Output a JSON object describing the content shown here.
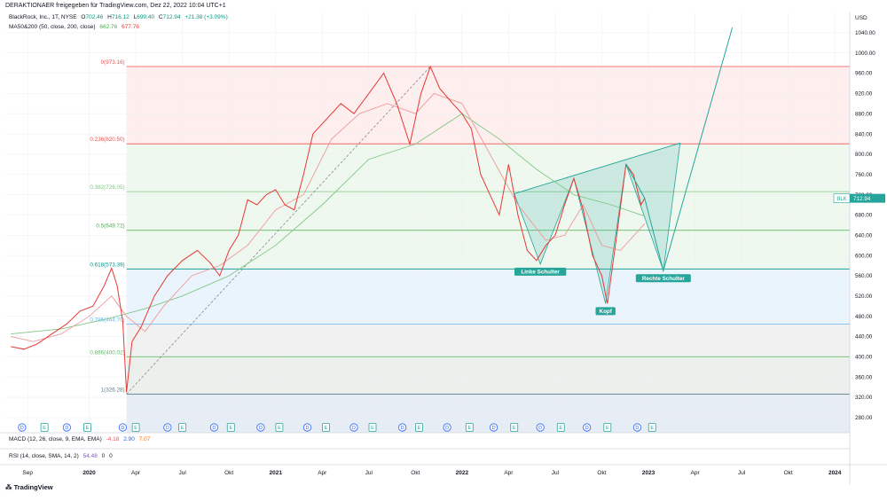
{
  "header": {
    "attribution": "DERAKTIONAER freigegeben für TradingView.com, Dez 22, 2022 10:04 UTC+1"
  },
  "legend": {
    "symbol": "BlackRock, Inc., 1T, NYSE",
    "ohlc": [
      {
        "key": "O",
        "value": "702.46"
      },
      {
        "key": "H",
        "value": "716.12"
      },
      {
        "key": "L",
        "value": "699.40"
      },
      {
        "key": "C",
        "value": "712.94"
      }
    ],
    "change": "+21.38 (+3.09%)",
    "ma_label": "MA50&200 (50, close, 200, close)",
    "ma_values": [
      "662.76",
      "677.76"
    ],
    "macd_label": "MACD (12, 26, close, 9, EMA, EMA)",
    "macd_values": [
      "-4.18",
      "2.90",
      "7.07"
    ],
    "rsi_label": "RSI (14, close, SMA, 14, 2)",
    "rsi_values": [
      "54.48",
      "0",
      "0"
    ]
  },
  "price_tag": {
    "symbol": "BLK",
    "value": "712.94"
  },
  "brand": "TradingView",
  "colors": {
    "price_line": "#e53935",
    "ma50": "#ef9a9a",
    "ma200": "#81c784",
    "projection": "#26a69a",
    "pattern_fill": "#26a69a",
    "label_bg": "#26a69a"
  },
  "chart_data": {
    "type": "line",
    "title": "BlackRock, Inc., 1T, NYSE",
    "currency": "USD",
    "y_ticks": [
      280,
      320,
      360,
      400,
      440,
      480,
      520,
      560,
      600,
      640,
      680,
      720,
      760,
      800,
      840,
      880,
      920,
      960,
      1000,
      1040
    ],
    "y_tick_labels": [
      "280.00",
      "320.00",
      "360.00",
      "400.00",
      "440.00",
      "480.00",
      "520.00",
      "560.00",
      "600.00",
      "640.00",
      "680.00",
      "720.00",
      "760.00",
      "800.00",
      "840.00",
      "880.00",
      "920.00",
      "960.00",
      "1000.00",
      "1040.00"
    ],
    "ylim": [
      250,
      1080
    ],
    "x_ticks": [
      {
        "label": "Sep",
        "t": 2019.67
      },
      {
        "label": "2020",
        "t": 2020.0
      },
      {
        "label": "Apr",
        "t": 2020.25
      },
      {
        "label": "Jul",
        "t": 2020.5
      },
      {
        "label": "Okt",
        "t": 2020.75
      },
      {
        "label": "2021",
        "t": 2021.0
      },
      {
        "label": "Apr",
        "t": 2021.25
      },
      {
        "label": "Jul",
        "t": 2021.5
      },
      {
        "label": "Okt",
        "t": 2021.75
      },
      {
        "label": "2022",
        "t": 2022.0
      },
      {
        "label": "Apr",
        "t": 2022.25
      },
      {
        "label": "Jul",
        "t": 2022.5
      },
      {
        "label": "Okt",
        "t": 2022.75
      },
      {
        "label": "2023",
        "t": 2023.0
      },
      {
        "label": "Apr",
        "t": 2023.25
      },
      {
        "label": "Jul",
        "t": 2023.5
      },
      {
        "label": "Okt",
        "t": 2023.75
      },
      {
        "label": "2024",
        "t": 2024.0
      }
    ],
    "fib_levels": [
      {
        "label": "0(973.16)",
        "value": 973.16,
        "color": "#ef5350"
      },
      {
        "label": "0.236(820.50)",
        "value": 820.5,
        "color": "#ef5350"
      },
      {
        "label": "0.382(726.05)",
        "value": 726.05,
        "color": "#81c784"
      },
      {
        "label": "0.5(649.72)",
        "value": 649.72,
        "color": "#4caf50"
      },
      {
        "label": "0.618(573.39)",
        "value": 573.39,
        "color": "#009688"
      },
      {
        "label": "0.786(464.70)",
        "value": 464.7,
        "color": "#64b5f6"
      },
      {
        "label": "0.886(400.02)",
        "value": 400.02,
        "color": "#66bb6a"
      },
      {
        "label": "1(326.28)",
        "value": 326.28,
        "color": "#607d8b"
      }
    ],
    "series": [
      {
        "name": "BLK",
        "points": [
          [
            2019.58,
            420
          ],
          [
            2019.65,
            415
          ],
          [
            2019.72,
            425
          ],
          [
            2019.8,
            445
          ],
          [
            2019.88,
            465
          ],
          [
            2019.95,
            490
          ],
          [
            2020.02,
            500
          ],
          [
            2020.08,
            540
          ],
          [
            2020.12,
            575
          ],
          [
            2020.15,
            540
          ],
          [
            2020.18,
            470
          ],
          [
            2020.2,
            330
          ],
          [
            2020.23,
            430
          ],
          [
            2020.28,
            460
          ],
          [
            2020.35,
            520
          ],
          [
            2020.42,
            560
          ],
          [
            2020.5,
            590
          ],
          [
            2020.58,
            610
          ],
          [
            2020.65,
            585
          ],
          [
            2020.7,
            560
          ],
          [
            2020.75,
            610
          ],
          [
            2020.8,
            640
          ],
          [
            2020.85,
            710
          ],
          [
            2020.9,
            700
          ],
          [
            2020.95,
            720
          ],
          [
            2021.0,
            730
          ],
          [
            2021.05,
            700
          ],
          [
            2021.1,
            690
          ],
          [
            2021.15,
            760
          ],
          [
            2021.2,
            840
          ],
          [
            2021.25,
            860
          ],
          [
            2021.3,
            880
          ],
          [
            2021.35,
            900
          ],
          [
            2021.42,
            880
          ],
          [
            2021.5,
            920
          ],
          [
            2021.58,
            960
          ],
          [
            2021.65,
            900
          ],
          [
            2021.72,
            820
          ],
          [
            2021.78,
            920
          ],
          [
            2021.83,
            973
          ],
          [
            2021.88,
            930
          ],
          [
            2021.95,
            900
          ],
          [
            2022.0,
            880
          ],
          [
            2022.05,
            850
          ],
          [
            2022.1,
            760
          ],
          [
            2022.15,
            720
          ],
          [
            2022.2,
            680
          ],
          [
            2022.25,
            780
          ],
          [
            2022.3,
            680
          ],
          [
            2022.35,
            610
          ],
          [
            2022.4,
            590
          ],
          [
            2022.45,
            620
          ],
          [
            2022.5,
            640
          ],
          [
            2022.55,
            700
          ],
          [
            2022.6,
            752
          ],
          [
            2022.65,
            690
          ],
          [
            2022.7,
            600
          ],
          [
            2022.75,
            560
          ],
          [
            2022.78,
            505
          ],
          [
            2022.83,
            640
          ],
          [
            2022.88,
            780
          ],
          [
            2022.92,
            760
          ],
          [
            2022.96,
            700
          ],
          [
            2022.98,
            712.94
          ]
        ]
      },
      {
        "name": "MA50",
        "points": [
          [
            2019.58,
            440
          ],
          [
            2019.7,
            430
          ],
          [
            2019.85,
            445
          ],
          [
            2020.0,
            480
          ],
          [
            2020.12,
            520
          ],
          [
            2020.2,
            480
          ],
          [
            2020.3,
            450
          ],
          [
            2020.4,
            500
          ],
          [
            2020.55,
            560
          ],
          [
            2020.7,
            580
          ],
          [
            2020.85,
            620
          ],
          [
            2021.0,
            690
          ],
          [
            2021.15,
            720
          ],
          [
            2021.3,
            830
          ],
          [
            2021.45,
            880
          ],
          [
            2021.6,
            900
          ],
          [
            2021.75,
            880
          ],
          [
            2021.85,
            920
          ],
          [
            2022.0,
            900
          ],
          [
            2022.15,
            800
          ],
          [
            2022.3,
            700
          ],
          [
            2022.45,
            630
          ],
          [
            2022.55,
            640
          ],
          [
            2022.65,
            700
          ],
          [
            2022.75,
            620
          ],
          [
            2022.85,
            610
          ],
          [
            2022.98,
            662.76
          ]
        ]
      },
      {
        "name": "MA200",
        "points": [
          [
            2019.58,
            445
          ],
          [
            2019.85,
            455
          ],
          [
            2020.1,
            475
          ],
          [
            2020.3,
            495
          ],
          [
            2020.5,
            520
          ],
          [
            2020.75,
            560
          ],
          [
            2021.0,
            620
          ],
          [
            2021.25,
            700
          ],
          [
            2021.5,
            790
          ],
          [
            2021.75,
            820
          ],
          [
            2022.0,
            880
          ],
          [
            2022.2,
            830
          ],
          [
            2022.4,
            770
          ],
          [
            2022.6,
            720
          ],
          [
            2022.8,
            700
          ],
          [
            2022.98,
            677.76
          ]
        ]
      }
    ],
    "trend_line": [
      [
        2020.2,
        326.28
      ],
      [
        2021.83,
        973.16
      ]
    ],
    "projection": [
      [
        2022.88,
        780
      ],
      [
        2022.98,
        712.94
      ],
      [
        2023.08,
        570
      ],
      [
        2023.45,
        1050
      ]
    ],
    "pattern": {
      "neckline_start": [
        2022.28,
        722
      ],
      "neckline_end": [
        2023.17,
        822
      ],
      "left_shoulder": [
        2022.42,
        583
      ],
      "head": [
        2022.77,
        505
      ],
      "right_shoulder": [
        2023.08,
        570
      ],
      "left_peak": [
        2022.6,
        752
      ],
      "right_peak": [
        2022.88,
        780
      ]
    },
    "annotations": [
      {
        "text": "Linke Schulter",
        "t": 2022.42,
        "y": 583
      },
      {
        "text": "Kopf",
        "t": 2022.77,
        "y": 505
      },
      {
        "text": "Rechte Schulter",
        "t": 2023.08,
        "y": 570
      }
    ],
    "event_markers": [
      {
        "t": 2019.64,
        "kind": "D"
      },
      {
        "t": 2019.76,
        "kind": "E"
      },
      {
        "t": 2019.88,
        "kind": "D"
      },
      {
        "t": 2019.99,
        "kind": "E"
      },
      {
        "t": 2020.18,
        "kind": "D"
      },
      {
        "t": 2020.25,
        "kind": "E"
      },
      {
        "t": 2020.42,
        "kind": "D"
      },
      {
        "t": 2020.5,
        "kind": "E"
      },
      {
        "t": 2020.67,
        "kind": "D"
      },
      {
        "t": 2020.76,
        "kind": "E"
      },
      {
        "t": 2020.92,
        "kind": "D"
      },
      {
        "t": 2021.02,
        "kind": "E"
      },
      {
        "t": 2021.17,
        "kind": "D"
      },
      {
        "t": 2021.27,
        "kind": "E"
      },
      {
        "t": 2021.42,
        "kind": "D"
      },
      {
        "t": 2021.52,
        "kind": "E"
      },
      {
        "t": 2021.68,
        "kind": "D"
      },
      {
        "t": 2021.77,
        "kind": "E"
      },
      {
        "t": 2021.92,
        "kind": "D"
      },
      {
        "t": 2022.04,
        "kind": "E"
      },
      {
        "t": 2022.17,
        "kind": "D"
      },
      {
        "t": 2022.28,
        "kind": "E"
      },
      {
        "t": 2022.42,
        "kind": "D"
      },
      {
        "t": 2022.53,
        "kind": "E"
      },
      {
        "t": 2022.67,
        "kind": "D"
      },
      {
        "t": 2022.78,
        "kind": "E"
      },
      {
        "t": 2022.94,
        "kind": "D"
      },
      {
        "t": 2023.02,
        "kind": "E"
      }
    ],
    "grid": true,
    "legend_position": "top-left"
  }
}
